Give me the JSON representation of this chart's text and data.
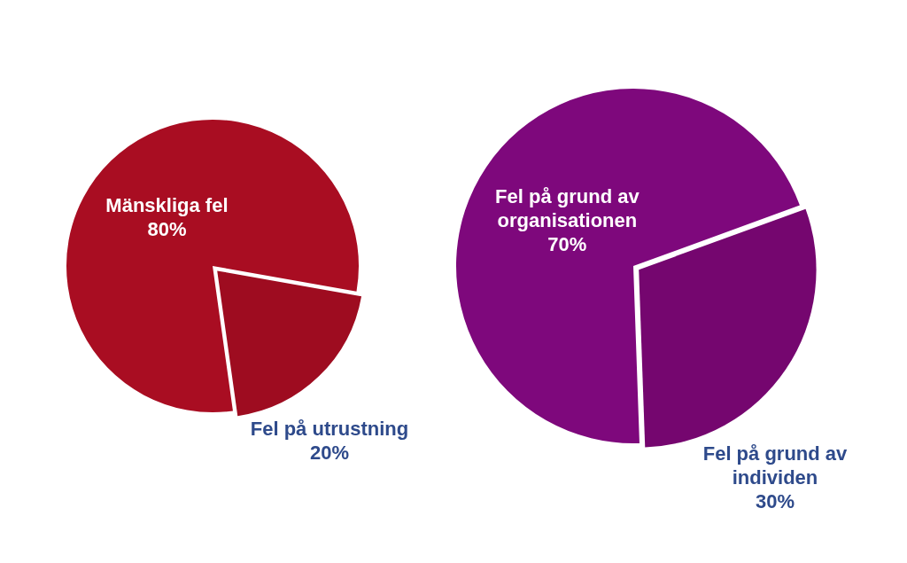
{
  "chart_data": [
    {
      "type": "pie",
      "categories": [
        "Mänskliga fel",
        "Fel på utrustning"
      ],
      "values": [
        80,
        20
      ],
      "colors": [
        "#a90d22",
        "#9e0c20"
      ],
      "value_labels": [
        "80%",
        "20%"
      ]
    },
    {
      "type": "pie",
      "categories": [
        "Fel på grund av organisationen",
        "Fel på grund av individen"
      ],
      "values": [
        70,
        30
      ],
      "colors": [
        "#7e087c",
        "#75066f"
      ],
      "value_labels": [
        "70%",
        "30%"
      ]
    }
  ]
}
